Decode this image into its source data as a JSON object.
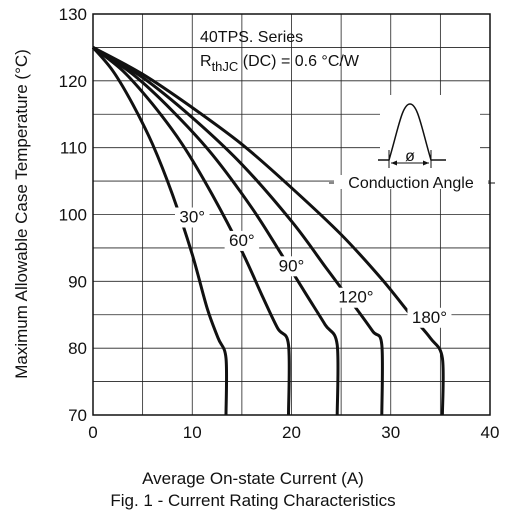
{
  "chart_data": {
    "type": "line",
    "xlabel": "Average On-state Current (A)",
    "ylabel": "Maximum Allowable Case Temperature (°C)",
    "caption": "Fig. 1 - Current Rating Characteristics",
    "xlim": [
      0,
      40
    ],
    "ylim": [
      70,
      130
    ],
    "x_ticks": [
      0,
      10,
      20,
      30,
      40
    ],
    "y_ticks": [
      70,
      80,
      90,
      100,
      110,
      120,
      130
    ],
    "grid": true,
    "annotation": {
      "line1": "40TPS. Series",
      "rth_main": "R",
      "rth_sub": "thJC",
      "rth_rest": " (DC) = 0.6 °C/W",
      "inset_label": "Conduction Angle",
      "inset_symbol": "ø"
    },
    "series": [
      {
        "label": "30°",
        "x": [
          0,
          2,
          4,
          6,
          8,
          10,
          11.5,
          12.6,
          13.4,
          13.4
        ],
        "y": [
          125,
          121.5,
          116.5,
          110.5,
          103,
          94,
          86,
          81.5,
          78.5,
          70
        ]
      },
      {
        "label": "60°",
        "x": [
          0,
          3,
          6,
          9,
          12,
          15,
          17,
          18.6,
          19.7,
          19.7
        ],
        "y": [
          125,
          121.5,
          116.5,
          110.5,
          103,
          94.5,
          88,
          83,
          80.5,
          70
        ]
      },
      {
        "label": "90°",
        "x": [
          0,
          4,
          8,
          12,
          16,
          19,
          21.5,
          23.4,
          24.6,
          24.6
        ],
        "y": [
          125,
          121,
          115.5,
          109,
          101,
          94,
          88,
          83.5,
          80.5,
          70
        ]
      },
      {
        "label": "120°",
        "x": [
          0,
          5,
          10,
          15,
          20,
          23.5,
          26.5,
          28.2,
          29.1,
          29.1
        ],
        "y": [
          125,
          120.5,
          114.5,
          107.5,
          99,
          92,
          86,
          82.5,
          80.5,
          70
        ]
      },
      {
        "label": "180°",
        "x": [
          0,
          5,
          10,
          15,
          20,
          25,
          29,
          32,
          34,
          35.2,
          35.2
        ],
        "y": [
          125,
          121,
          116,
          110.5,
          104,
          97,
          90.5,
          85,
          81.5,
          78.5,
          70
        ]
      }
    ]
  }
}
